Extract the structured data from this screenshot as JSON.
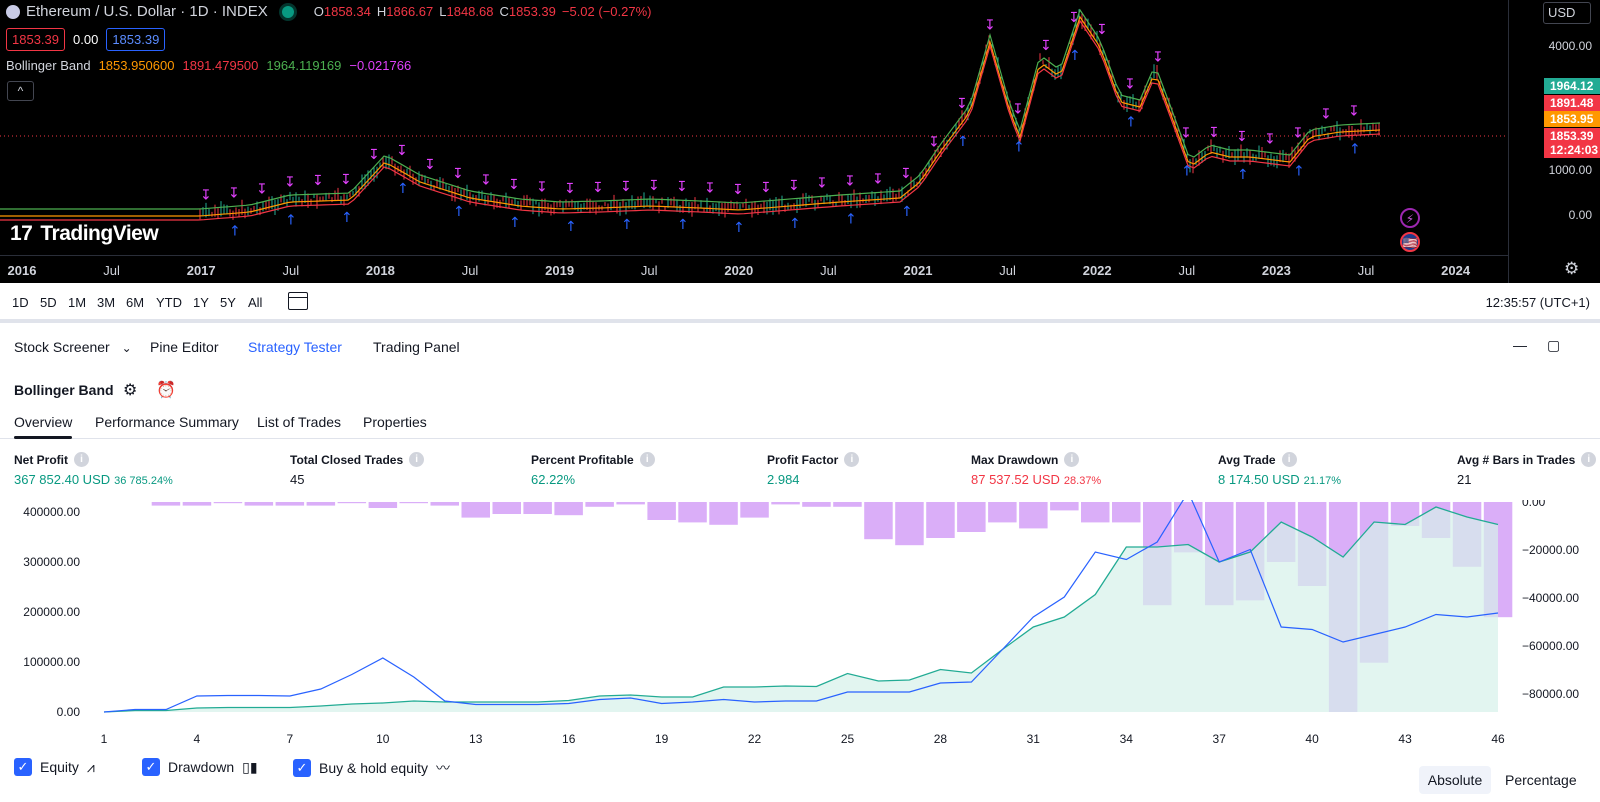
{
  "header": {
    "symbol": "Ethereum / U.S. Dollar · 1D · INDEX",
    "ohlc": [
      {
        "label": "O",
        "value": "1858.34"
      },
      {
        "label": "H",
        "value": "1866.67"
      },
      {
        "label": "L",
        "value": "1848.68"
      },
      {
        "label": "C",
        "value": "1853.39"
      }
    ],
    "change": "−5.02 (−0.27%)",
    "bid": "1853.39",
    "spread": "0.00",
    "ask": "1853.39",
    "indicator": {
      "name": "Bollinger Band",
      "values": [
        "1853.950600",
        "1891.479500",
        "1964.119169",
        "−0.021766"
      ],
      "colors": [
        "#ff9800",
        "#f23645",
        "#4caf50",
        "#e040fb"
      ]
    },
    "collapse_glyph": "^",
    "logo_mark": "17",
    "logo_text": "TradingView"
  },
  "top_chart": {
    "currency": "USD",
    "y_ticks": [
      "4000.00",
      "1000.00",
      "0.00"
    ],
    "price_labels": [
      {
        "value": "1964.12",
        "color": "#22ab94"
      },
      {
        "value": "1891.48",
        "color": "#f23645"
      },
      {
        "value": "1853.95",
        "color": "#ff9800"
      },
      {
        "value": "1853.39",
        "color": "#f23645"
      },
      {
        "value": "12:24:03",
        "color": "#f23645"
      }
    ],
    "x_ticks": [
      {
        "label": "2016",
        "year": true
      },
      {
        "label": "Jul",
        "year": false
      },
      {
        "label": "2017",
        "year": true
      },
      {
        "label": "Jul",
        "year": false
      },
      {
        "label": "2018",
        "year": true
      },
      {
        "label": "Jul",
        "year": false
      },
      {
        "label": "2019",
        "year": true
      },
      {
        "label": "Jul",
        "year": false
      },
      {
        "label": "2020",
        "year": true
      },
      {
        "label": "Jul",
        "year": false
      },
      {
        "label": "2021",
        "year": true
      },
      {
        "label": "Jul",
        "year": false
      },
      {
        "label": "2022",
        "year": true
      },
      {
        "label": "Jul",
        "year": false
      },
      {
        "label": "2023",
        "year": true
      },
      {
        "label": "Jul",
        "year": false
      },
      {
        "label": "2024",
        "year": true
      }
    ],
    "bolt_glyph": "⚡",
    "flag_glyph": "🇺🇸",
    "gear_glyph": "⚙"
  },
  "range_bar": {
    "ranges": [
      "1D",
      "5D",
      "1M",
      "3M",
      "6M",
      "YTD",
      "1Y",
      "5Y",
      "All"
    ],
    "clock": "12:35:57 (UTC+1)"
  },
  "panel": {
    "tabs": [
      "Stock Screener",
      "Pine Editor",
      "Strategy Tester",
      "Trading Panel"
    ],
    "dropdown_glyph": "⌄",
    "minimize_glyph": "—",
    "maximize_glyph": "▢",
    "strategy_name": "Bollinger Band",
    "settings_glyph": "⚙",
    "alert_glyph": "⏰",
    "sub_tabs": [
      "Overview",
      "Performance Summary",
      "List of Trades",
      "Properties"
    ],
    "info_glyph": "i",
    "metrics": [
      {
        "label": "Net Profit",
        "value": "367 852.40 USD",
        "sub": "36 785.24%",
        "color": "green"
      },
      {
        "label": "Total Closed Trades",
        "value": "45",
        "sub": "",
        "color": "dark"
      },
      {
        "label": "Percent Profitable",
        "value": "62.22%",
        "sub": "",
        "color": "green"
      },
      {
        "label": "Profit Factor",
        "value": "2.984",
        "sub": "",
        "color": "green"
      },
      {
        "label": "Max Drawdown",
        "value": "87 537.52 USD",
        "sub": "28.37%",
        "color": "red"
      },
      {
        "label": "Avg Trade",
        "value": "8 174.50 USD",
        "sub": "21.17%",
        "color": "green"
      },
      {
        "label": "Avg # Bars in Trades",
        "value": "21",
        "sub": "",
        "color": "dark"
      }
    ],
    "legend": [
      {
        "label": "Equity",
        "glyph": "⩘"
      },
      {
        "label": "Drawdown",
        "glyph": "▯▮"
      },
      {
        "label": "Buy & hold equity",
        "glyph": "〰"
      }
    ],
    "check_glyph": "✓",
    "absolute_label": "Absolute",
    "percentage_label": "Percentage"
  },
  "chart_data": {
    "type": "area",
    "x_ticks": [
      "1",
      "4",
      "7",
      "10",
      "13",
      "16",
      "19",
      "22",
      "25",
      "28",
      "31",
      "34",
      "37",
      "40",
      "43",
      "46"
    ],
    "left_axis_ticks": [
      "400000.00",
      "300000.00",
      "200000.00",
      "100000.00",
      "0.00"
    ],
    "right_axis_ticks": [
      "0.00",
      "−20000.00",
      "−40000.00",
      "−60000.00",
      "−80000.00"
    ],
    "left_range": [
      0,
      420000
    ],
    "right_range": [
      -87537,
      0
    ],
    "colors": {
      "equity": "#22ab94",
      "equity_fill": "#d6f1ea",
      "buy_hold": "#2962ff",
      "drawdown": "#ce93f5"
    },
    "trade": [
      1,
      2,
      3,
      4,
      5,
      6,
      7,
      8,
      9,
      10,
      11,
      12,
      13,
      14,
      15,
      16,
      17,
      18,
      19,
      20,
      21,
      22,
      23,
      24,
      25,
      26,
      27,
      28,
      29,
      30,
      31,
      32,
      33,
      34,
      35,
      36,
      37,
      38,
      39,
      40,
      41,
      42,
      43,
      44,
      45,
      46
    ],
    "equity": [
      0,
      3000,
      3000,
      8000,
      9000,
      9000,
      9000,
      12000,
      16000,
      18000,
      22000,
      20000,
      20000,
      20000,
      20000,
      23000,
      32000,
      34000,
      30000,
      30000,
      50000,
      50000,
      52000,
      51000,
      77000,
      62000,
      64000,
      85000,
      78000,
      125000,
      170000,
      190000,
      235000,
      330000,
      330000,
      335000,
      300000,
      320000,
      380000,
      350000,
      310000,
      380000,
      375000,
      410000,
      390000,
      375000
    ],
    "buy_hold": [
      0,
      5000,
      5000,
      32000,
      33000,
      33000,
      32000,
      46000,
      75000,
      108000,
      70000,
      22000,
      15000,
      15000,
      15000,
      17000,
      25000,
      28000,
      17000,
      20000,
      25000,
      20000,
      22000,
      22000,
      40000,
      40000,
      40000,
      58000,
      60000,
      125000,
      190000,
      230000,
      320000,
      305000,
      340000,
      440000,
      300000,
      325000,
      170000,
      165000,
      140000,
      155000,
      170000,
      195000,
      190000,
      198000
    ],
    "drawdown": [
      0,
      0,
      -1500,
      -1500,
      -500,
      -1500,
      -1500,
      -1500,
      -500,
      -2500,
      -500,
      -1500,
      -6500,
      -5000,
      -5000,
      -5500,
      -2000,
      -1000,
      -7500,
      -8500,
      -9500,
      -6500,
      -1000,
      -2000,
      -2000,
      -15500,
      -18000,
      -15000,
      -12500,
      -8500,
      -11000,
      -3500,
      -8500,
      -8500,
      -43000,
      -21000,
      -43000,
      -41000,
      -25000,
      -35000,
      -87537,
      -67000,
      -10000,
      -15000,
      -27000,
      -48000
    ]
  }
}
